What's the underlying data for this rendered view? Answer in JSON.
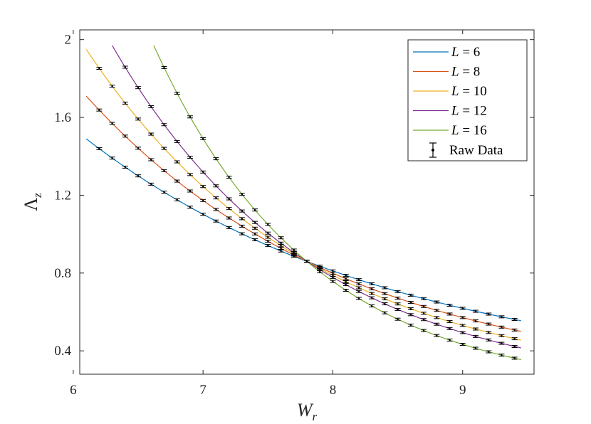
{
  "chart_data": {
    "type": "line",
    "xlabel": "W",
    "xlabel_sub": "r",
    "ylabel": "Λ",
    "ylabel_sub": "z",
    "xlim": [
      6.05,
      9.55
    ],
    "ylim": [
      0.28,
      2.05
    ],
    "xticks": [
      6,
      7,
      8,
      9
    ],
    "yticks": [
      0.4,
      0.8,
      1.2,
      1.6,
      2.0
    ],
    "xtick_labels": [
      "6",
      "7",
      "8",
      "9"
    ],
    "ytick_labels": [
      "0.4",
      "0.8",
      "1.2",
      "1.6",
      "2"
    ],
    "grid": false,
    "legend_position": "top-right",
    "crossing_point": [
      7.8,
      0.86
    ],
    "raw_data_legend": "Raw Data",
    "series": [
      {
        "name": "L = 6",
        "legend_L": "L",
        "legend_value": "6",
        "color": "#0072BD",
        "x_range": [
          6.1,
          9.45
        ],
        "y_start": 1.49,
        "y_end": 0.555,
        "raw_data_x_range": [
          6.2,
          9.4
        ]
      },
      {
        "name": "L = 8",
        "legend_L": "L",
        "legend_value": "8",
        "color": "#D95319",
        "x_range": [
          6.1,
          9.45
        ],
        "y_start": 1.71,
        "y_end": 0.5,
        "raw_data_x_range": [
          6.2,
          9.4
        ]
      },
      {
        "name": "L = 10",
        "legend_L": "L",
        "legend_value": "10",
        "color": "#EDB120",
        "x_range": [
          6.1,
          9.45
        ],
        "y_start": 1.95,
        "y_end": 0.455,
        "raw_data_x_range": [
          6.2,
          9.4
        ]
      },
      {
        "name": "L = 12",
        "legend_L": "L",
        "legend_value": "12",
        "color": "#7E2F8E",
        "x_range": [
          6.3,
          9.45
        ],
        "y_start": 1.97,
        "y_end": 0.415,
        "raw_data_x_range": [
          6.4,
          9.4
        ]
      },
      {
        "name": "L = 16",
        "legend_L": "L",
        "legend_value": "16",
        "color": "#77AC30",
        "x_range": [
          6.62,
          9.45
        ],
        "y_start": 1.97,
        "y_end": 0.355,
        "raw_data_x_range": [
          6.7,
          9.4
        ]
      }
    ]
  }
}
